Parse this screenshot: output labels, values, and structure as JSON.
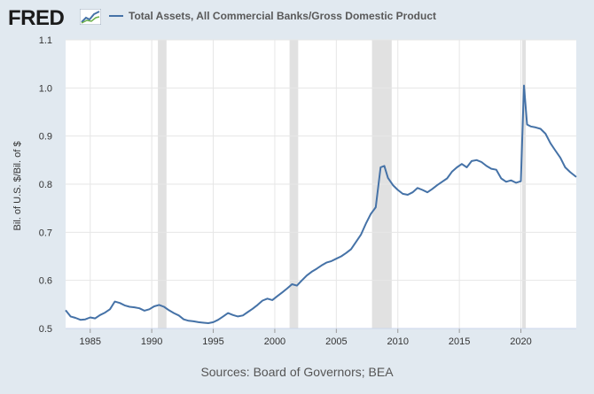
{
  "header": {
    "logo_text": "FRED",
    "legend_label": "Total Assets, All Commercial Banks/Gross Domestic Product",
    "legend_color": "#4572a7"
  },
  "source_text": "Sources: Board of Governors; BEA",
  "chart_data": {
    "type": "line",
    "title": "Total Assets, All Commercial Banks/Gross Domestic Product",
    "xlabel": "",
    "ylabel": "Bil. of U.S. $/Bil. of $",
    "xlim": [
      1983,
      2024.5
    ],
    "ylim": [
      0.5,
      1.1
    ],
    "yticks": [
      0.5,
      0.6,
      0.7,
      0.8,
      0.9,
      1.0,
      1.1
    ],
    "ytick_labels": [
      "0.5",
      "0.6",
      "0.7",
      "0.8",
      "0.9",
      "1.0",
      "1.1"
    ],
    "xticks": [
      1985,
      1990,
      1995,
      2000,
      2005,
      2010,
      2015,
      2020
    ],
    "xtick_labels": [
      "1985",
      "1990",
      "1995",
      "2000",
      "2005",
      "2010",
      "2015",
      "2020"
    ],
    "recessions": [
      [
        1990.5,
        1991.2
      ],
      [
        2001.2,
        2001.9
      ],
      [
        2007.9,
        2009.5
      ],
      [
        2020.1,
        2020.4
      ]
    ],
    "series": [
      {
        "name": "Total Assets, All Commercial Banks/Gross Domestic Product",
        "color": "#4572a7",
        "x": [
          1983.0,
          1983.4,
          1983.8,
          1984.2,
          1984.6,
          1985.0,
          1985.4,
          1985.8,
          1986.2,
          1986.6,
          1987.0,
          1987.4,
          1987.8,
          1988.2,
          1988.6,
          1989.0,
          1989.4,
          1989.8,
          1990.2,
          1990.6,
          1991.0,
          1991.4,
          1991.8,
          1992.2,
          1992.6,
          1993.0,
          1993.4,
          1993.8,
          1994.2,
          1994.6,
          1995.0,
          1995.4,
          1995.8,
          1996.2,
          1996.6,
          1997.0,
          1997.4,
          1997.8,
          1998.2,
          1998.6,
          1999.0,
          1999.4,
          1999.8,
          2000.2,
          2000.6,
          2001.0,
          2001.4,
          2001.8,
          2002.2,
          2002.6,
          2003.0,
          2003.4,
          2003.8,
          2004.2,
          2004.6,
          2005.0,
          2005.4,
          2005.8,
          2006.2,
          2006.6,
          2007.0,
          2007.4,
          2007.8,
          2008.2,
          2008.6,
          2008.9,
          2009.2,
          2009.6,
          2010.0,
          2010.4,
          2010.8,
          2011.2,
          2011.6,
          2012.0,
          2012.4,
          2012.8,
          2013.2,
          2013.6,
          2014.0,
          2014.4,
          2014.8,
          2015.2,
          2015.6,
          2016.0,
          2016.4,
          2016.8,
          2017.2,
          2017.6,
          2018.0,
          2018.4,
          2018.8,
          2019.2,
          2019.6,
          2020.0,
          2020.25,
          2020.5,
          2020.8,
          2021.2,
          2021.6,
          2022.0,
          2022.4,
          2022.8,
          2023.2,
          2023.6,
          2024.0,
          2024.5
        ],
        "values": [
          0.538,
          0.525,
          0.522,
          0.518,
          0.519,
          0.523,
          0.521,
          0.528,
          0.533,
          0.54,
          0.556,
          0.553,
          0.548,
          0.545,
          0.544,
          0.542,
          0.537,
          0.54,
          0.546,
          0.549,
          0.545,
          0.538,
          0.532,
          0.527,
          0.519,
          0.516,
          0.515,
          0.513,
          0.512,
          0.511,
          0.513,
          0.518,
          0.525,
          0.532,
          0.528,
          0.525,
          0.527,
          0.534,
          0.541,
          0.549,
          0.558,
          0.562,
          0.559,
          0.567,
          0.575,
          0.583,
          0.592,
          0.589,
          0.6,
          0.61,
          0.618,
          0.624,
          0.631,
          0.637,
          0.64,
          0.645,
          0.65,
          0.657,
          0.665,
          0.68,
          0.695,
          0.718,
          0.738,
          0.752,
          0.835,
          0.838,
          0.813,
          0.798,
          0.788,
          0.78,
          0.778,
          0.783,
          0.792,
          0.788,
          0.783,
          0.79,
          0.798,
          0.805,
          0.812,
          0.826,
          0.835,
          0.842,
          0.835,
          0.848,
          0.85,
          0.846,
          0.838,
          0.832,
          0.83,
          0.812,
          0.805,
          0.808,
          0.803,
          0.806,
          1.005,
          0.924,
          0.92,
          0.918,
          0.915,
          0.905,
          0.885,
          0.87,
          0.855,
          0.835,
          0.825,
          0.815
        ]
      }
    ]
  }
}
